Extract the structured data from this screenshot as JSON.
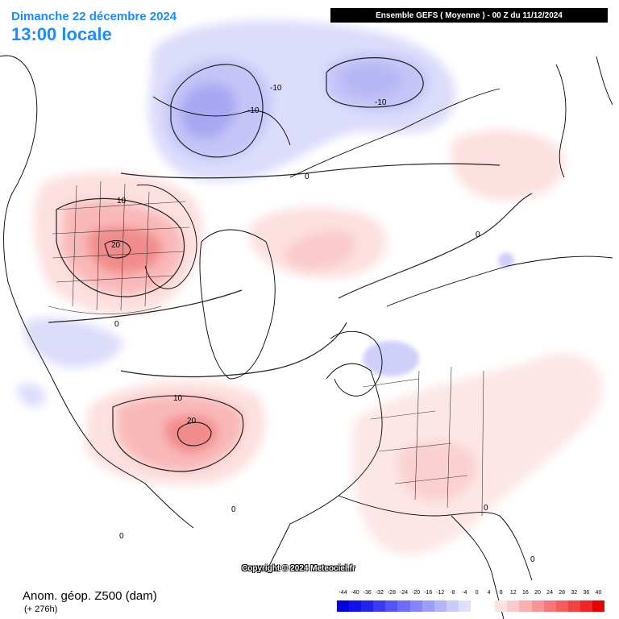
{
  "header": {
    "date_title": "Dimanche 22 décembre 2024",
    "time_title": "13:00 locale",
    "run_info": "Ensemble GEFS  ( Moyenne )  -  00 Z du 11/12/2024"
  },
  "footer": {
    "copyright": "Copyright © 2024 Meteociel.fr",
    "variable_label": "Anom. géop. Z500 (dam)",
    "lead_time": "(+ 276h)"
  },
  "legend": {
    "ticks": [
      "-44",
      "-40",
      "-36",
      "-32",
      "-28",
      "-24",
      "-20",
      "-16",
      "-12",
      "-8",
      "-4",
      "0",
      "4",
      "8",
      "12",
      "16",
      "20",
      "24",
      "28",
      "32",
      "36",
      "40"
    ],
    "colors": [
      "#0000dd",
      "#1010e8",
      "#2323f0",
      "#3a3af4",
      "#5353f6",
      "#6c6cf8",
      "#8585f9",
      "#9d9dfa",
      "#b4b4fb",
      "#cacafc",
      "#e0e0fd",
      "#ffffff",
      "#ffffff",
      "#fde0e0",
      "#fccaca",
      "#fbb0b0",
      "#f99494",
      "#f77878",
      "#f55c5c",
      "#f34040",
      "#f02424",
      "#e80000"
    ]
  },
  "contour_labels": [
    {
      "text": "-10",
      "id": "alaska-low-1"
    },
    {
      "text": "-10",
      "id": "alaska-low-2"
    },
    {
      "text": "-10",
      "id": "siberia-low"
    },
    {
      "text": "10",
      "id": "canada-high-outer"
    },
    {
      "text": "20",
      "id": "canada-high-inner"
    },
    {
      "text": "10",
      "id": "atlantic-high-outer"
    },
    {
      "text": "20",
      "id": "atlantic-high-inner"
    },
    {
      "text": "0",
      "id": "zero-1"
    },
    {
      "text": "0",
      "id": "zero-2"
    },
    {
      "text": "0",
      "id": "zero-3"
    },
    {
      "text": "0",
      "id": "zero-4"
    },
    {
      "text": "0",
      "id": "zero-5"
    },
    {
      "text": "0",
      "id": "zero-6"
    },
    {
      "text": "0",
      "id": "zero-7"
    }
  ],
  "colors": {
    "negative_light": "#dcdcfb",
    "negative_mid": "#c4c4f8",
    "negative_deep": "#a8a8f2",
    "positive_light": "#fde0e0",
    "positive_mid": "#f9b8b8",
    "positive_deep": "#f28c8c",
    "title_blue": "#1a8cff"
  }
}
